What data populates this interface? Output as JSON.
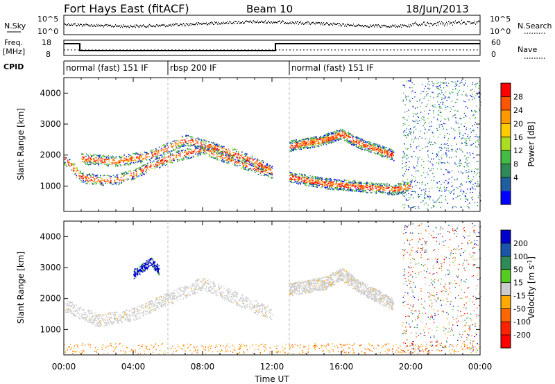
{
  "header": {
    "station": "Fort Hays East (fitACF)",
    "beam": "Beam 10",
    "date": "18/Jun/2013"
  },
  "top_panel": {
    "left_label": "N.Sky",
    "left_ticks": [
      "10^5",
      "10^0"
    ],
    "right_label": "N.Search",
    "right_ticks": [
      "10^5",
      "10^0"
    ]
  },
  "freq_panel": {
    "left_label_line1": "Freq.",
    "left_label_line2": "[MHz]",
    "left_ticks": [
      "18",
      "8"
    ],
    "right_label": "Nave",
    "right_ticks": [
      "60",
      "0"
    ]
  },
  "cpid": {
    "label": "CPID",
    "segments": [
      {
        "text": "normal (fast) 151 IF",
        "start": 0,
        "end": 6
      },
      {
        "text": "rbsp 200 IF",
        "start": 6,
        "end": 13
      },
      {
        "text": "normal (fast) 151 IF",
        "start": 13,
        "end": 24
      }
    ]
  },
  "power_colorbar": {
    "label": "Power [dB]",
    "ticks": [
      "28",
      "24",
      "20",
      "16",
      "12",
      "8",
      "4"
    ],
    "colors": [
      "#ff0000",
      "#ff5500",
      "#ff9900",
      "#ffcc00",
      "#aadd22",
      "#44bb44",
      "#2e8b57",
      "#1f5fa0",
      "#0000ff"
    ]
  },
  "velocity_colorbar": {
    "label": "Velocity [m s",
    "label_sup": "-1",
    "label_end": "]",
    "ticks": [
      "200",
      "100",
      "50",
      "15",
      "-15",
      "-50",
      "-100",
      "-200"
    ],
    "colors": [
      "#0000cc",
      "#1a55aa",
      "#2e8b57",
      "#55cc22",
      "#cccccc",
      "#ffaa00",
      "#ff6600",
      "#ff2200",
      "#ff0000"
    ]
  },
  "y_axis_label": "Slant Range [km]",
  "x_axis_label": "Time UT",
  "chart_data": [
    {
      "type": "heatmap",
      "title": "Power",
      "xlabel": "Time UT",
      "ylabel": "Slant Range [km]",
      "x_ticks": [
        "00:00",
        "04:00",
        "08:00",
        "12:00",
        "16:00",
        "20:00",
        "00:00"
      ],
      "y_ticks": [
        1000,
        2000,
        3000,
        4000
      ],
      "xlim": [
        0,
        24
      ],
      "ylim": [
        180,
        4500
      ],
      "features": [
        {
          "name": "main band",
          "t": [
            0,
            1,
            2,
            3,
            4,
            6,
            8,
            10,
            11,
            12
          ],
          "range_km": [
            1900,
            1300,
            1200,
            1200,
            1400,
            1900,
            2200,
            1800,
            1600,
            1400
          ]
        },
        {
          "name": "upper band",
          "t": [
            1,
            3,
            5,
            7,
            9,
            11,
            12
          ],
          "range_km": [
            1900,
            1800,
            2000,
            2500,
            2200,
            1800,
            1500
          ]
        },
        {
          "name": "afternoon band",
          "t": [
            13,
            15,
            16,
            17,
            18,
            19
          ],
          "range_km": [
            2300,
            2500,
            2700,
            2400,
            2200,
            2000
          ]
        },
        {
          "name": "lower band",
          "t": [
            13,
            15,
            17,
            19,
            20
          ],
          "range_km": [
            1300,
            1100,
            1000,
            900,
            1000
          ]
        }
      ]
    },
    {
      "type": "heatmap",
      "title": "Velocity",
      "xlabel": "Time UT",
      "ylabel": "Slant Range [km]",
      "x_ticks": [
        "00:00",
        "04:00",
        "08:00",
        "12:00",
        "16:00",
        "20:00",
        "00:00"
      ],
      "y_ticks": [
        1000,
        2000,
        3000,
        4000
      ],
      "xlim": [
        0,
        24
      ],
      "ylim": [
        180,
        4500
      ],
      "features": [
        {
          "name": "ground scatter",
          "t": [
            0,
            2,
            4,
            6,
            8,
            10,
            12
          ],
          "range_km": [
            1800,
            1300,
            1500,
            2000,
            2500,
            2000,
            1500
          ]
        },
        {
          "name": "positive velocity patch",
          "t": [
            4,
            4.5,
            5,
            5.5
          ],
          "range_km": [
            2800,
            3000,
            3200,
            2900
          ]
        },
        {
          "name": "afternoon ground scatter",
          "t": [
            13,
            15,
            16,
            17,
            19
          ],
          "range_km": [
            2300,
            2500,
            2800,
            2400,
            1800
          ]
        }
      ]
    }
  ]
}
